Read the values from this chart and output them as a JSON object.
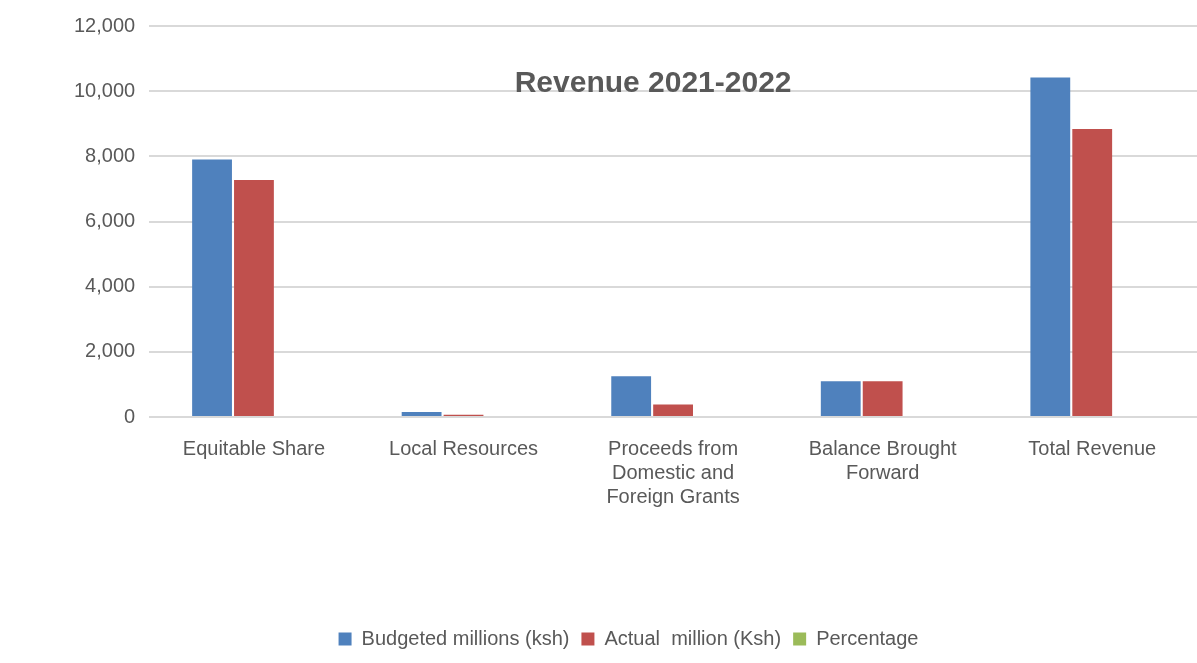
{
  "chart_data": {
    "type": "bar",
    "title": "Revenue 2021-2022",
    "categories": [
      "Equitable Share",
      "Local Resources",
      "Proceeds from Domestic and Foreign Grants",
      "Balance Brought Forward",
      "Total Revenue"
    ],
    "series": [
      {
        "name": "Budgeted millions (ksh)",
        "color": "#4f81bd",
        "values": [
          7900,
          150,
          1250,
          1100,
          10420
        ]
      },
      {
        "name": "Actual  million (Ksh)",
        "color": "#c0504d",
        "values": [
          7270,
          70,
          380,
          1100,
          8840
        ]
      },
      {
        "name": "Percentage",
        "color": "#9bbb59",
        "values": [
          null,
          null,
          null,
          null,
          null
        ]
      }
    ],
    "ylim": [
      0,
      12000
    ],
    "yticks": [
      0,
      {
        "value": 2000,
        "label": "2,000"
      },
      {
        "value": 4000,
        "label": "4,000"
      },
      {
        "value": 6000,
        "label": "6,000"
      },
      {
        "value": 8000,
        "label": "8,000"
      },
      {
        "value": 10000,
        "label": "10,000"
      },
      {
        "value": 12000,
        "label": "12,000"
      }
    ],
    "grid": "y",
    "legend": "bottom"
  }
}
